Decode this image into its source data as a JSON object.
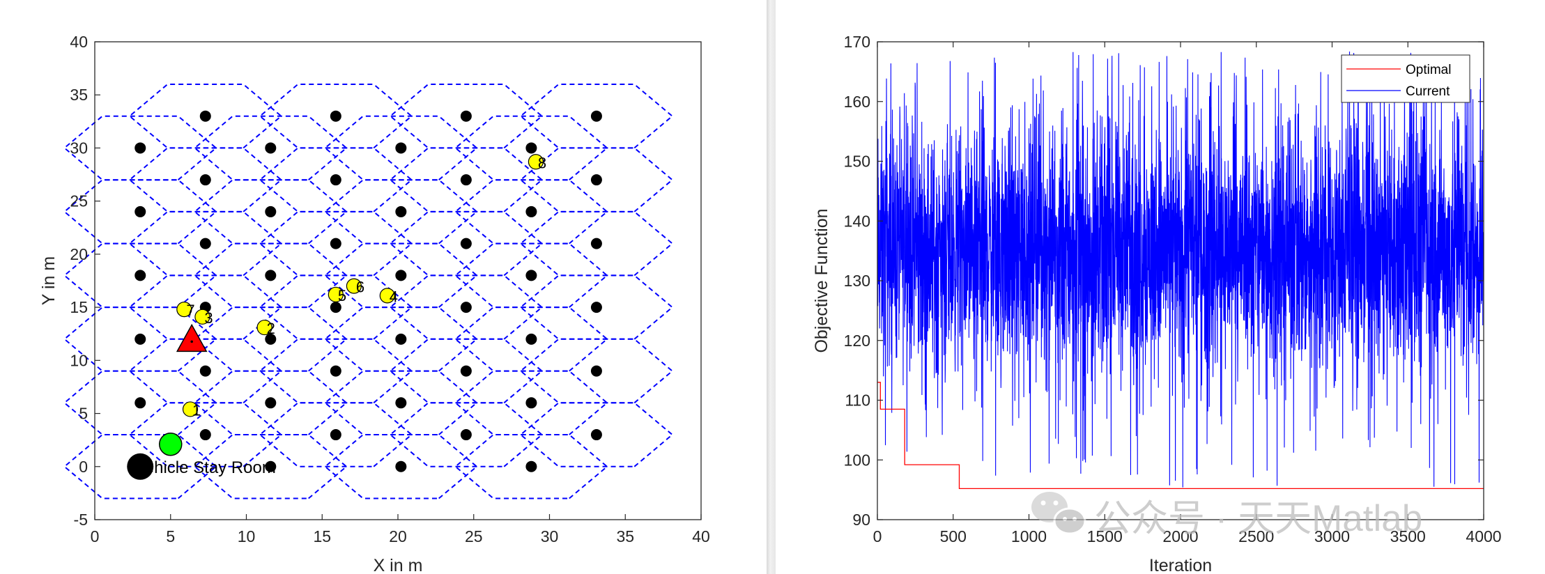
{
  "chart_data": [
    {
      "type": "scatter",
      "xlabel": "X in m",
      "ylabel": "Y in m",
      "xlim": [
        0,
        40
      ],
      "ylim": [
        -5,
        40
      ],
      "xticks": [
        0,
        5,
        10,
        15,
        20,
        25,
        30,
        35,
        40
      ],
      "yticks": [
        -5,
        0,
        5,
        10,
        15,
        20,
        25,
        30,
        35,
        40
      ],
      "hex_radius": 5.0,
      "cell_columns": [
        {
          "x": 3.0,
          "y": [
            0,
            6,
            12,
            18,
            24,
            30
          ]
        },
        {
          "x": 7.3,
          "y": [
            3,
            9,
            15,
            21,
            27,
            33
          ]
        },
        {
          "x": 11.6,
          "y": [
            0,
            6,
            12,
            18,
            24,
            30
          ]
        },
        {
          "x": 15.9,
          "y": [
            3,
            9,
            15,
            21,
            27,
            33
          ]
        },
        {
          "x": 20.2,
          "y": [
            0,
            6,
            12,
            18,
            24,
            30
          ]
        },
        {
          "x": 24.5,
          "y": [
            3,
            9,
            15,
            21,
            27,
            33
          ]
        },
        {
          "x": 28.8,
          "y": [
            0,
            6,
            12,
            18,
            24,
            30
          ]
        },
        {
          "x": 33.1,
          "y": [
            3,
            9,
            15,
            21,
            27,
            33
          ]
        }
      ],
      "targets": [
        {
          "label": "1",
          "x": 6.3,
          "y": 5.4
        },
        {
          "label": "2",
          "x": 11.2,
          "y": 13.1
        },
        {
          "label": "3",
          "x": 7.1,
          "y": 14.1
        },
        {
          "label": "4",
          "x": 19.3,
          "y": 16.1
        },
        {
          "label": "5",
          "x": 15.9,
          "y": 16.2
        },
        {
          "label": "6",
          "x": 17.1,
          "y": 17.0
        },
        {
          "label": "7",
          "x": 5.9,
          "y": 14.8
        },
        {
          "label": "8",
          "x": 29.1,
          "y": 28.7
        }
      ],
      "uav": {
        "x": 6.4,
        "y": 11.9,
        "color": "#ff0000"
      },
      "green_marker": {
        "x": 5.0,
        "y": 2.1,
        "color": "#00ff00"
      },
      "start_marker": {
        "x": 3.0,
        "y": 0.0,
        "color": "#000000"
      },
      "annotation": {
        "text": "ehicle Stay Room",
        "x": 3.3,
        "y": 0.0
      },
      "hex_color": "#0000ff",
      "target_color": "#ffff00"
    },
    {
      "type": "line",
      "xlabel": "Iteration",
      "ylabel": "Objective Function",
      "xlim": [
        0,
        4000
      ],
      "ylim": [
        90,
        170
      ],
      "xticks": [
        0,
        500,
        1000,
        1500,
        2000,
        2500,
        3000,
        3500,
        4000
      ],
      "yticks": [
        90,
        100,
        110,
        120,
        130,
        140,
        150,
        160,
        170
      ],
      "legend": {
        "position": "top-right"
      },
      "series": [
        {
          "name": "Optimal",
          "color": "#ff0000",
          "step_x": [
            0,
            20,
            20,
            180,
            180,
            540,
            540,
            4000
          ],
          "step_y": [
            113,
            113,
            108.5,
            108.5,
            99.2,
            99.2,
            95.2,
            95.2
          ]
        },
        {
          "name": "Current",
          "color": "#0000ff",
          "iterations": 4000,
          "band_low": 118,
          "band_high": 152,
          "spike_max": 168.5,
          "dip_min": 95.2
        }
      ]
    }
  ],
  "watermark": {
    "text": "公众号 · 天天Matlab"
  }
}
